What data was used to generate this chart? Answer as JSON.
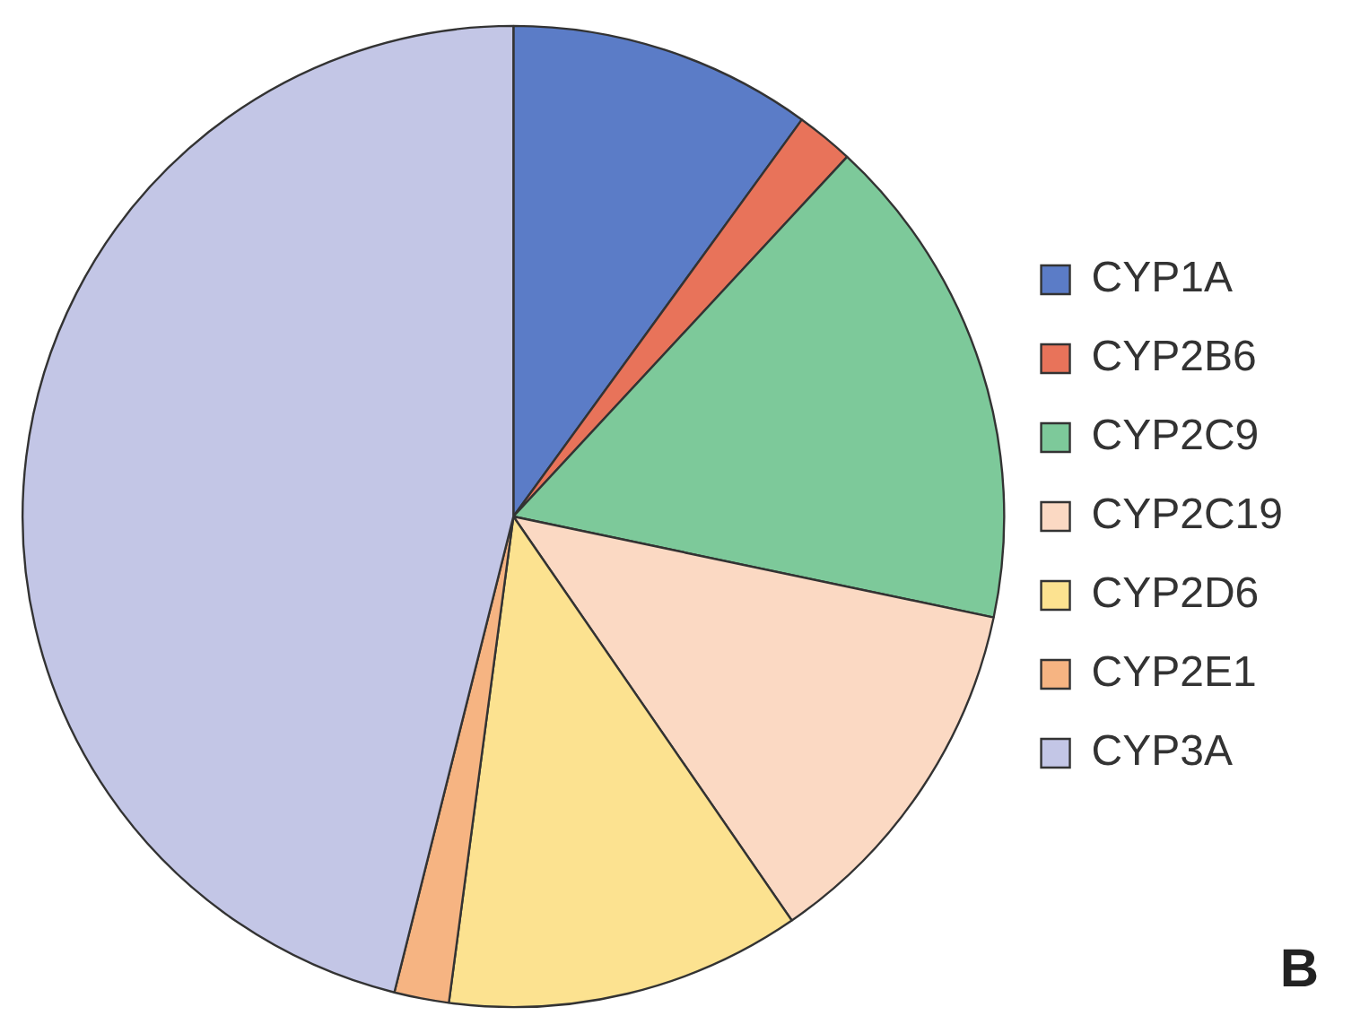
{
  "chart_data": {
    "type": "pie",
    "categories": [
      "CYP1A",
      "CYP2B6",
      "CYP2C9",
      "CYP2C19",
      "CYP2D6",
      "CYP2E1",
      "CYP3A"
    ],
    "values": [
      10,
      1.9,
      16.4,
      12.1,
      11.7,
      1.8,
      46.1
    ],
    "colors": [
      "#5b7cc7",
      "#e8735a",
      "#7dc99a",
      "#fbd9c3",
      "#fce290",
      "#f6b482",
      "#c3c6e6"
    ],
    "legend": "right",
    "annotations": [
      "B"
    ]
  }
}
